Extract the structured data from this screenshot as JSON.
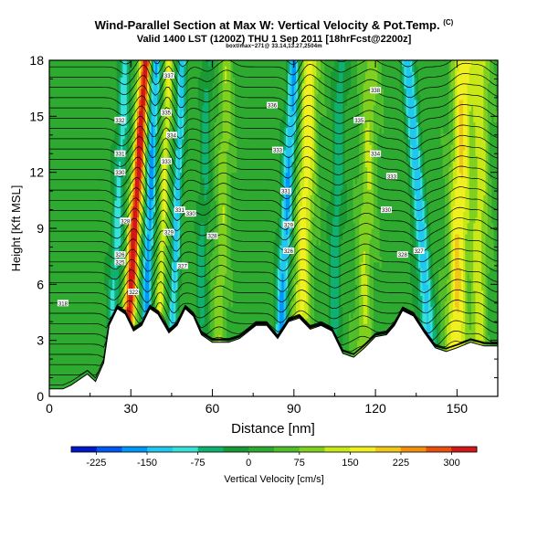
{
  "title": "Wind-Parallel Section at Max W: Vertical Velocity & Pot.Temp.",
  "title_mark": "(C)",
  "subtitle": "Valid 1400 LST (1200Z) THU 1 Sep 2011 [18hrFcst@2200z]",
  "caption": "boxt/max~271@ 33.14,13.27,2504m",
  "chart_data": {
    "type": "heatmap",
    "title": "Wind-Parallel Section at Max W: Vertical Velocity & Pot.Temp.",
    "xlabel": "Distance [nm]",
    "ylabel": "Height [Kft MSL]",
    "xlim": [
      0,
      165
    ],
    "ylim": [
      0,
      18
    ],
    "xticks": [
      "0",
      "30",
      "60",
      "90",
      "120",
      "150"
    ],
    "yticks": [
      "0",
      "3",
      "6",
      "9",
      "12",
      "15",
      "18"
    ],
    "colorbar_label": "Vertical Velocity [cm/s]",
    "colorbar_ticks": [
      "-225",
      "-150",
      "-75",
      "0",
      "75",
      "150",
      "225",
      "300"
    ],
    "colorbar_range": [
      -262,
      337
    ],
    "colors": [
      "#0018c8",
      "#0058f0",
      "#0098f8",
      "#20c8f0",
      "#38e0d8",
      "#10b070",
      "#1a9a35",
      "#2eaa30",
      "#50be2a",
      "#80d020",
      "#c8e818",
      "#f0f020",
      "#f0c818",
      "#f09010",
      "#e85010",
      "#d01818"
    ],
    "base_velocity": 20,
    "terrain": [
      [
        0,
        0.4
      ],
      [
        5,
        0.4
      ],
      [
        8,
        0.6
      ],
      [
        14,
        1.2
      ],
      [
        17,
        0.8
      ],
      [
        20,
        1.8
      ],
      [
        22,
        3.8
      ],
      [
        25,
        4.7
      ],
      [
        28,
        4.4
      ],
      [
        31,
        3.5
      ],
      [
        34,
        3.8
      ],
      [
        37,
        4.7
      ],
      [
        40,
        4.4
      ],
      [
        44,
        3.4
      ],
      [
        47,
        3.8
      ],
      [
        50,
        4.7
      ],
      [
        53,
        4.3
      ],
      [
        56,
        3.3
      ],
      [
        60,
        2.9
      ],
      [
        66,
        2.9
      ],
      [
        70,
        3.1
      ],
      [
        76,
        3.8
      ],
      [
        80,
        3.8
      ],
      [
        84,
        3.1
      ],
      [
        88,
        4.0
      ],
      [
        92,
        4.2
      ],
      [
        96,
        3.6
      ],
      [
        100,
        3.8
      ],
      [
        104,
        3.5
      ],
      [
        108,
        2.3
      ],
      [
        112,
        2.1
      ],
      [
        116,
        2.6
      ],
      [
        120,
        3.2
      ],
      [
        124,
        3.3
      ],
      [
        127,
        3.8
      ],
      [
        130,
        4.6
      ],
      [
        134,
        4.3
      ],
      [
        138,
        3.4
      ],
      [
        142,
        2.6
      ],
      [
        146,
        2.4
      ],
      [
        150,
        2.6
      ],
      [
        155,
        2.9
      ],
      [
        160,
        2.7
      ],
      [
        165,
        2.7
      ]
    ],
    "updrafts": [
      {
        "x": 30,
        "tilt": 0.45,
        "width": 2.2,
        "amplitude": 320
      },
      {
        "x": 41,
        "tilt": 0.25,
        "width": 1.6,
        "amplitude": 130
      },
      {
        "x": 63,
        "tilt": 0.2,
        "width": 2.6,
        "amplitude": 80
      },
      {
        "x": 93,
        "tilt": 0.25,
        "width": 3.2,
        "amplitude": 150
      },
      {
        "x": 116,
        "tilt": 0.2,
        "width": 3.0,
        "amplitude": 90
      },
      {
        "x": 150,
        "tilt": 0.2,
        "width": 3.6,
        "amplitude": 170
      },
      {
        "x": 158,
        "tilt": 0.1,
        "width": 3.0,
        "amplitude": 110
      }
    ],
    "downdrafts": [
      {
        "x": 24,
        "tilt": 0.35,
        "width": 2.2,
        "amplitude": -110
      },
      {
        "x": 36,
        "tilt": 0.25,
        "width": 1.8,
        "amplitude": -190
      },
      {
        "x": 46,
        "tilt": 0.25,
        "width": 1.6,
        "amplitude": -150
      },
      {
        "x": 56,
        "tilt": 0.2,
        "width": 2.0,
        "amplitude": -70
      },
      {
        "x": 86,
        "tilt": 0.35,
        "width": 2.2,
        "amplitude": -180
      },
      {
        "x": 105,
        "tilt": 0.2,
        "width": 2.2,
        "amplitude": -80
      },
      {
        "x": 138,
        "tilt": -0.5,
        "width": 2.6,
        "amplitude": -150
      }
    ],
    "contour_labels": [
      {
        "x": 5,
        "y": 5.0,
        "text": "318"
      },
      {
        "x": 26,
        "y": 14.8,
        "text": "332"
      },
      {
        "x": 26,
        "y": 13.0,
        "text": "331"
      },
      {
        "x": 26,
        "y": 12.0,
        "text": "330"
      },
      {
        "x": 28,
        "y": 9.4,
        "text": "328"
      },
      {
        "x": 26,
        "y": 7.6,
        "text": "326"
      },
      {
        "x": 26,
        "y": 7.2,
        "text": "325"
      },
      {
        "x": 31,
        "y": 5.6,
        "text": "322"
      },
      {
        "x": 44,
        "y": 17.2,
        "text": "337"
      },
      {
        "x": 43,
        "y": 15.2,
        "text": "335"
      },
      {
        "x": 45,
        "y": 14.0,
        "text": "334"
      },
      {
        "x": 43,
        "y": 12.6,
        "text": "333"
      },
      {
        "x": 48,
        "y": 10.0,
        "text": "331"
      },
      {
        "x": 44,
        "y": 8.8,
        "text": "329"
      },
      {
        "x": 52,
        "y": 9.8,
        "text": "330"
      },
      {
        "x": 49,
        "y": 7.0,
        "text": "327"
      },
      {
        "x": 60,
        "y": 8.6,
        "text": "328"
      },
      {
        "x": 82,
        "y": 15.6,
        "text": "336"
      },
      {
        "x": 84,
        "y": 13.2,
        "text": "333"
      },
      {
        "x": 87,
        "y": 11.0,
        "text": "331"
      },
      {
        "x": 88,
        "y": 9.2,
        "text": "329"
      },
      {
        "x": 88,
        "y": 7.8,
        "text": "326"
      },
      {
        "x": 120,
        "y": 16.4,
        "text": "338"
      },
      {
        "x": 114,
        "y": 14.8,
        "text": "335"
      },
      {
        "x": 120,
        "y": 13.0,
        "text": "334"
      },
      {
        "x": 126,
        "y": 11.8,
        "text": "333"
      },
      {
        "x": 124,
        "y": 10.0,
        "text": "330"
      },
      {
        "x": 130,
        "y": 7.6,
        "text": "328"
      },
      {
        "x": 136,
        "y": 7.8,
        "text": "327"
      }
    ]
  }
}
